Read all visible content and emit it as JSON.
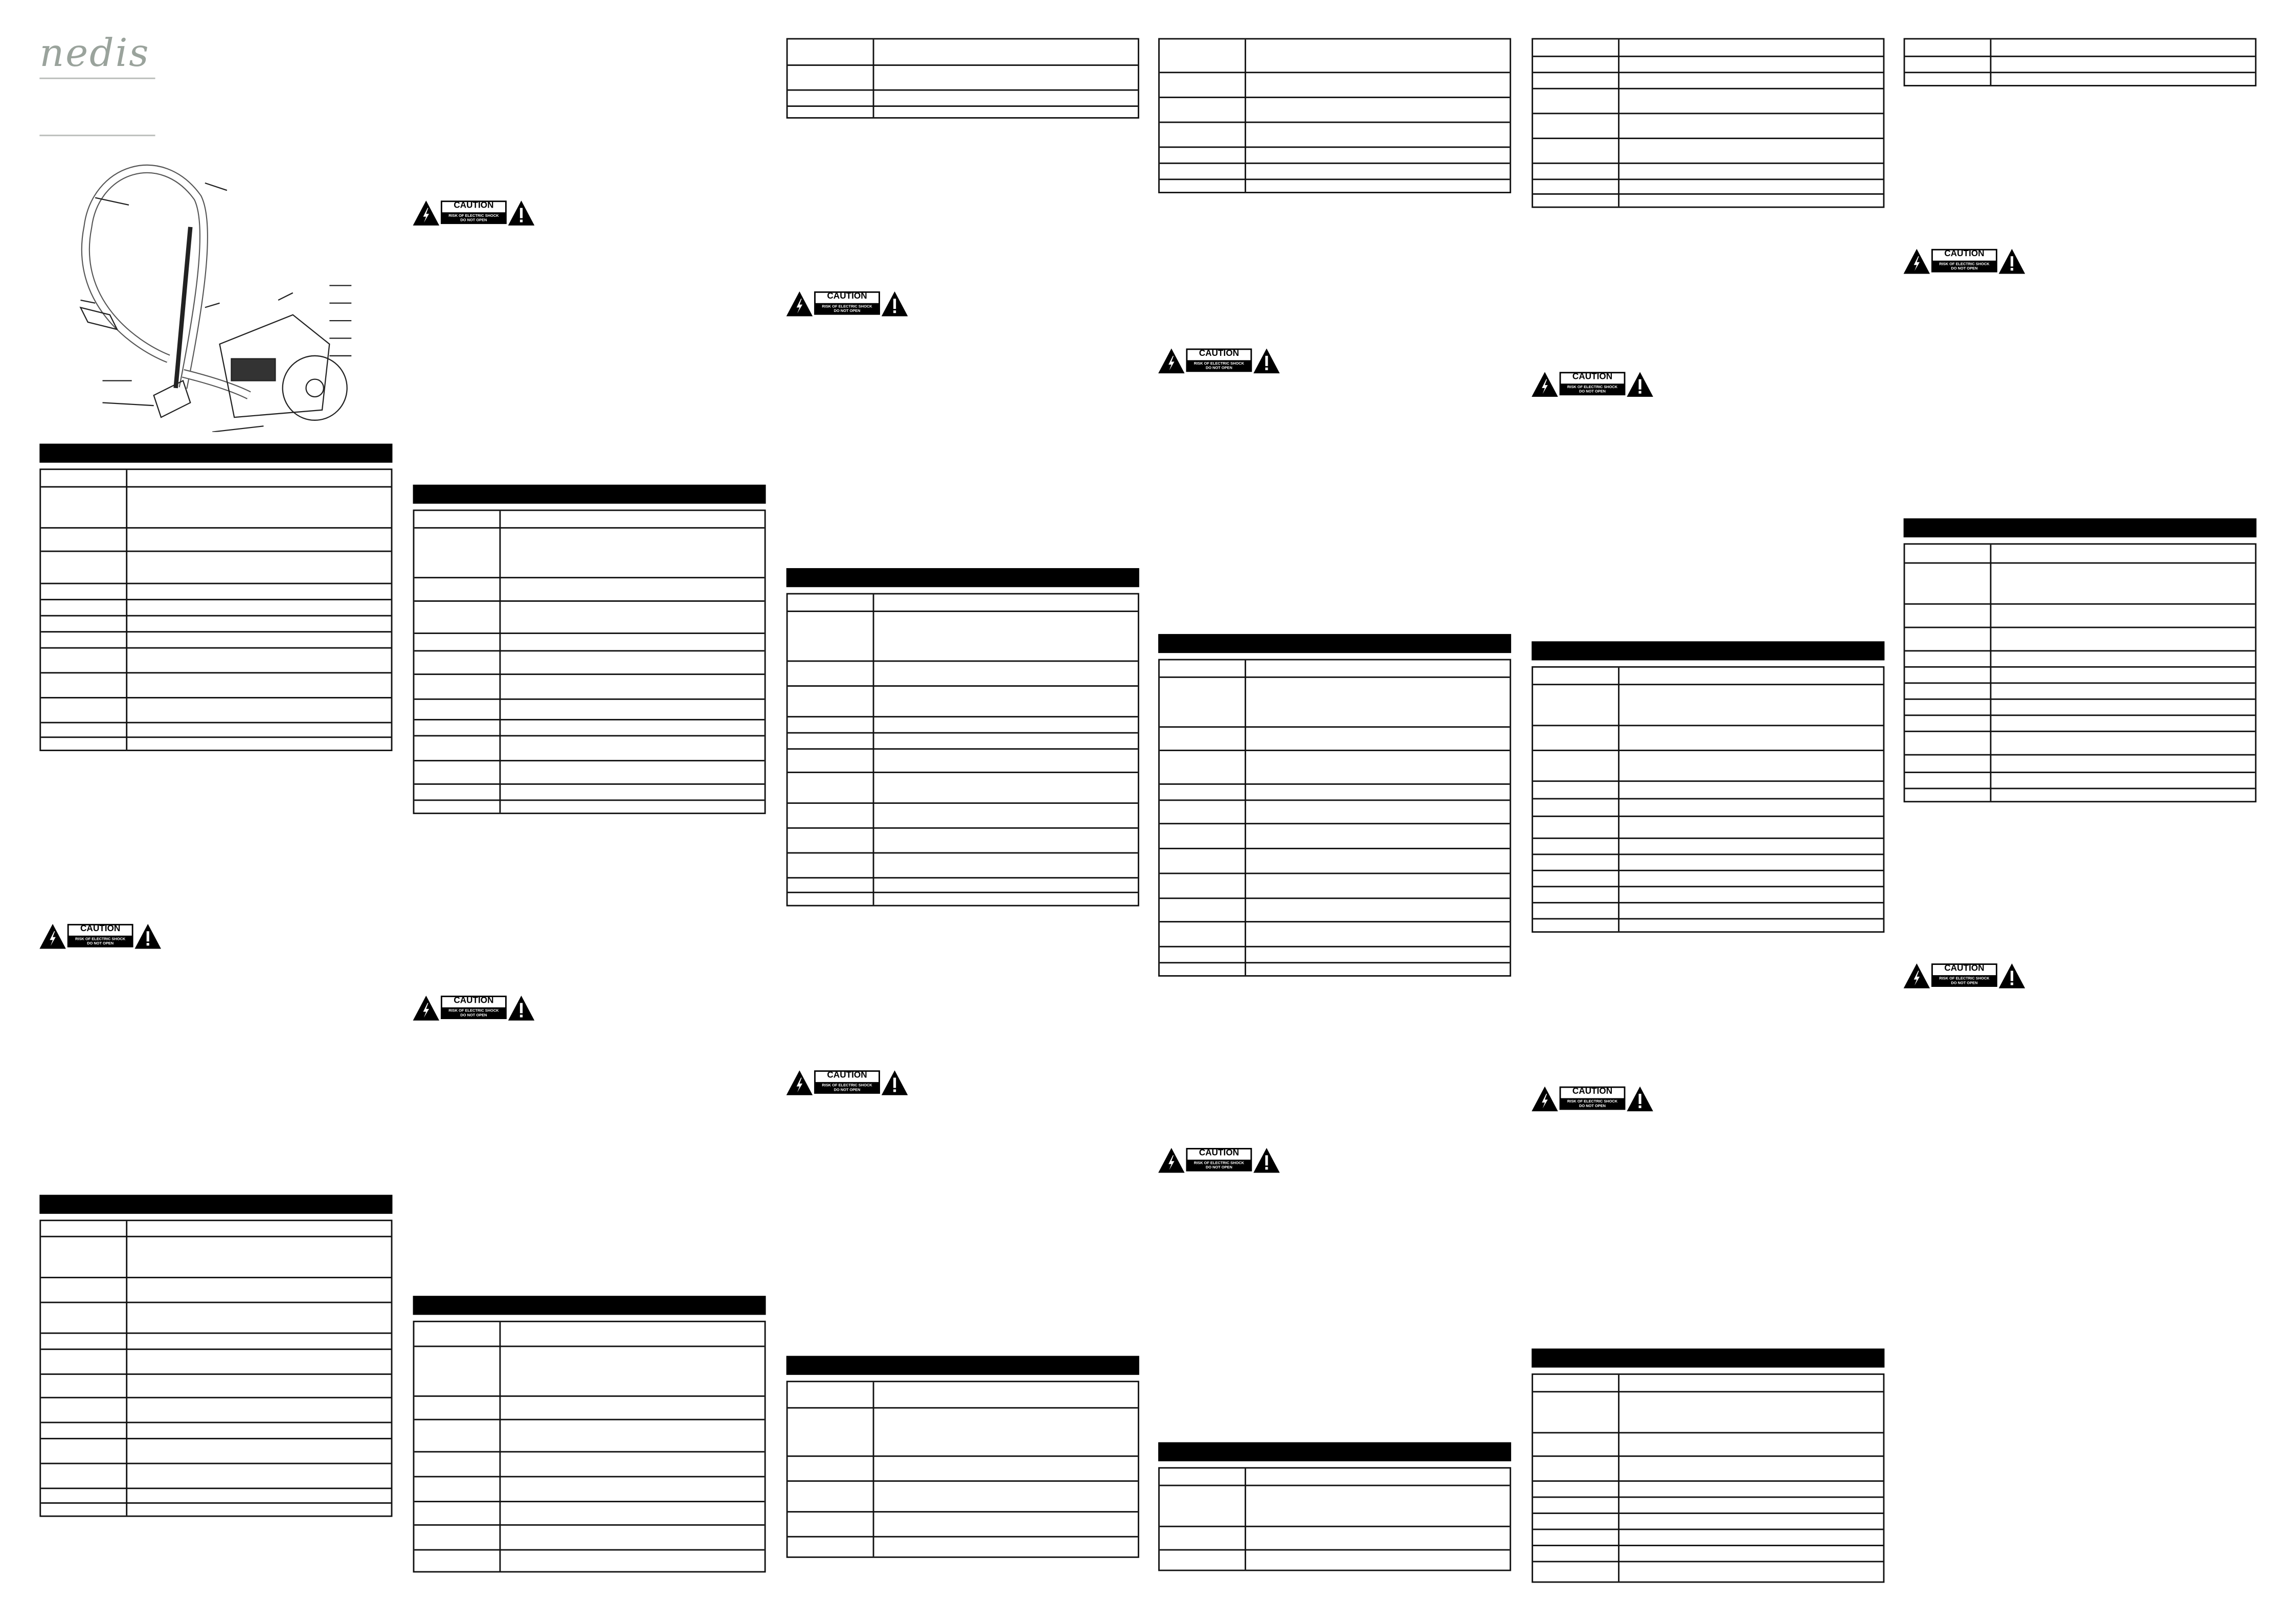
{
  "brand": {
    "logo_text": "nedis",
    "logo_color": "#9aa39c"
  },
  "caution": {
    "title": "CAUTION",
    "line1": "RISK OF ELECTRIC SHOCK",
    "line2": "DO NOT OPEN"
  },
  "colors": {
    "header_bar": "#000000",
    "table_border": "#111111"
  }
}
